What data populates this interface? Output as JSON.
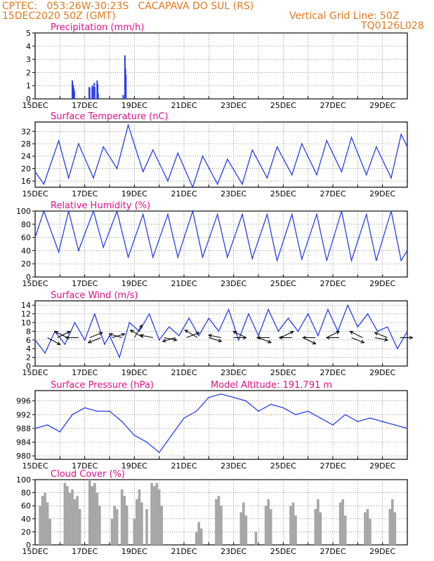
{
  "header": {
    "line1": "CPTEC:   053:26W-30:23S   CACAPAVA DO SUL (RS)",
    "line2": "15DEC2020 50Z (GMT)",
    "vgrid": "Vertical Grid Line: 50Z",
    "code": "TQ0126L028"
  },
  "colors": {
    "title_text": "#e0108a",
    "header_text": "#e07a22",
    "line_series": "#2a3fe8",
    "bar_series": "#2a3fe8",
    "cloud_bars": "#a6a6a6",
    "wind_arrows": "#000000"
  },
  "x_axis": {
    "tick_labels": [
      "15DEC",
      "17DEC",
      "19DEC",
      "21DEC",
      "23DEC",
      "25DEC",
      "27DEC",
      "29DEC"
    ],
    "range_days": [
      0,
      15
    ]
  },
  "chart_data": [
    {
      "type": "bar",
      "title": "Precipitation  (mm/h)",
      "ylim": [
        0,
        5
      ],
      "yticks": [
        0,
        1,
        2,
        3,
        4,
        5
      ],
      "x": [
        1.5,
        1.52,
        1.54,
        1.56,
        1.58,
        2.18,
        2.2,
        2.3,
        2.32,
        2.38,
        2.4,
        2.5,
        2.52,
        2.54,
        3.55,
        3.62,
        3.64,
        3.66
      ],
      "values": [
        1.4,
        1.1,
        1.0,
        0.8,
        0.6,
        0.9,
        0.8,
        1.0,
        0.9,
        1.2,
        0.9,
        1.4,
        1.1,
        0.4,
        0.3,
        3.3,
        2.3,
        1.8
      ]
    },
    {
      "type": "line",
      "title": "Surface Temperature  (nC)",
      "ylim": [
        14,
        35
      ],
      "yticks": [
        16,
        20,
        24,
        28,
        32
      ],
      "x": [
        0,
        0.35,
        0.95,
        1.35,
        1.75,
        2.35,
        2.75,
        3.3,
        3.75,
        4.35,
        4.75,
        5.35,
        5.75,
        6.35,
        6.75,
        7.35,
        7.75,
        8.35,
        8.75,
        9.35,
        9.75,
        10.35,
        10.75,
        11.35,
        11.75,
        12.35,
        12.75,
        13.35,
        13.75,
        14.35,
        14.75,
        15.0
      ],
      "values": [
        19,
        15,
        29,
        17,
        28,
        17,
        27,
        20,
        34,
        19,
        26,
        16,
        25,
        14,
        24,
        15,
        23,
        15,
        26,
        17,
        27,
        18,
        28,
        18,
        29,
        19,
        30,
        18,
        27,
        17,
        31,
        27
      ]
    },
    {
      "type": "line",
      "title": "Relative Humidity  (%)",
      "ylim": [
        0,
        100
      ],
      "yticks": [
        0,
        20,
        40,
        60,
        80,
        100
      ],
      "x": [
        0,
        0.35,
        0.95,
        1.35,
        1.75,
        2.35,
        2.75,
        3.3,
        3.75,
        4.35,
        4.75,
        5.35,
        5.75,
        6.35,
        6.75,
        7.35,
        7.75,
        8.35,
        8.75,
        9.35,
        9.75,
        10.35,
        10.75,
        11.35,
        11.75,
        12.35,
        12.75,
        13.35,
        13.75,
        14.35,
        14.75,
        15.0
      ],
      "values": [
        60,
        100,
        38,
        100,
        40,
        100,
        45,
        100,
        30,
        95,
        30,
        95,
        30,
        100,
        30,
        95,
        30,
        95,
        28,
        95,
        25,
        95,
        27,
        95,
        25,
        100,
        25,
        95,
        25,
        100,
        25,
        40
      ]
    },
    {
      "type": "line",
      "title": "Surface Wind  (m/s)",
      "ylim": [
        0,
        15
      ],
      "yticks": [
        0,
        2,
        4,
        6,
        8,
        10,
        12,
        14
      ],
      "x": [
        0,
        0.4,
        0.8,
        1.2,
        1.6,
        2.0,
        2.4,
        2.8,
        3.0,
        3.4,
        3.8,
        4.2,
        4.6,
        5.0,
        5.4,
        5.8,
        6.2,
        6.6,
        7.0,
        7.4,
        7.8,
        8.2,
        8.6,
        9.0,
        9.4,
        9.8,
        10.2,
        10.6,
        11.0,
        11.4,
        11.8,
        12.2,
        12.6,
        13.0,
        13.4,
        13.8,
        14.2,
        14.6,
        15.0
      ],
      "values": [
        6,
        3,
        8,
        5,
        10,
        6,
        12,
        5,
        7,
        2,
        10,
        8,
        12,
        6,
        9,
        7,
        11,
        7,
        11,
        8,
        13,
        6,
        12,
        7,
        13,
        8,
        11,
        8,
        12,
        7,
        13,
        8,
        14,
        9,
        12,
        8,
        9,
        4,
        8
      ],
      "wind_vectors": [
        {
          "x": 0.5,
          "u": 1.0,
          "v": -0.55
        },
        {
          "x": 0.9,
          "u": 1.0,
          "v": 0.5
        },
        {
          "x": 1.3,
          "u": -1.0,
          "v": 0.5
        },
        {
          "x": 1.75,
          "u": -1.0,
          "v": 0.0
        },
        {
          "x": 2.2,
          "u": 1.0,
          "v": 0.4
        },
        {
          "x": 2.65,
          "u": -1.0,
          "v": -0.4
        },
        {
          "x": 3.1,
          "u": 1.0,
          "v": 0.3
        },
        {
          "x": 3.5,
          "u": -1.0,
          "v": 0.3
        },
        {
          "x": 4.0,
          "u": 0.6,
          "v": 1.0
        },
        {
          "x": 4.35,
          "u": -1.0,
          "v": 0.6
        },
        {
          "x": 4.75,
          "u": -1.0,
          "v": 0.2
        },
        {
          "x": 5.2,
          "u": 1.0,
          "v": -0.2
        },
        {
          "x": 5.65,
          "u": -1.0,
          "v": -0.3
        },
        {
          "x": 6.1,
          "u": 1.0,
          "v": 0.4
        },
        {
          "x": 6.55,
          "u": -1.0,
          "v": 0.6
        },
        {
          "x": 7.0,
          "u": 1.0,
          "v": -0.3
        },
        {
          "x": 7.5,
          "u": -1.0,
          "v": 0.2
        },
        {
          "x": 8.0,
          "u": 1.0,
          "v": 0.0
        },
        {
          "x": 8.5,
          "u": -1.0,
          "v": 0.5
        },
        {
          "x": 9.0,
          "u": 1.0,
          "v": -0.4
        },
        {
          "x": 9.45,
          "u": -1.0,
          "v": 0.0
        },
        {
          "x": 9.9,
          "u": 1.0,
          "v": 0.5
        },
        {
          "x": 10.35,
          "u": -1.0,
          "v": 0.0
        },
        {
          "x": 10.8,
          "u": 1.0,
          "v": -0.5
        },
        {
          "x": 11.3,
          "u": -1.0,
          "v": 0.0
        },
        {
          "x": 11.75,
          "u": 1.0,
          "v": 0.5
        },
        {
          "x": 12.25,
          "u": -1.0,
          "v": 0.0
        },
        {
          "x": 12.75,
          "u": 1.0,
          "v": -0.4
        },
        {
          "x": 13.2,
          "u": -1.0,
          "v": 0.5
        },
        {
          "x": 13.7,
          "u": 1.0,
          "v": -0.2
        },
        {
          "x": 14.2,
          "u": -1.0,
          "v": 0.4
        },
        {
          "x": 14.7,
          "u": 1.0,
          "v": 0.0
        }
      ]
    },
    {
      "type": "line",
      "title": "Surface Pressure  (hPa)",
      "annotation": "Model Altitude: 191.791  m",
      "ylim": [
        979,
        999
      ],
      "yticks": [
        980,
        984,
        988,
        992,
        996
      ],
      "x": [
        0,
        0.5,
        1.0,
        1.5,
        2.0,
        2.5,
        3.0,
        3.5,
        4.0,
        4.5,
        5.0,
        5.5,
        6.0,
        6.5,
        7.0,
        7.5,
        8.0,
        8.5,
        9.0,
        9.5,
        10.0,
        10.5,
        11.0,
        11.5,
        12.0,
        12.5,
        13.0,
        13.5,
        14.0,
        14.5,
        15.0
      ],
      "values": [
        988,
        989,
        987,
        992,
        994,
        993,
        993,
        990,
        986,
        984,
        981,
        986,
        991,
        993,
        997,
        998,
        997,
        996,
        993,
        995,
        994,
        992,
        993,
        991,
        989,
        992,
        990,
        991,
        990,
        989,
        988
      ]
    },
    {
      "type": "bar",
      "title": "Cloud Cover  (%)",
      "ylim": [
        0,
        100
      ],
      "yticks": [
        0,
        20,
        40,
        60,
        80,
        100
      ],
      "x": [
        0.2,
        0.3,
        0.4,
        0.5,
        0.6,
        1.2,
        1.3,
        1.4,
        1.5,
        1.6,
        1.7,
        1.8,
        2.2,
        2.3,
        2.4,
        2.5,
        2.6,
        3.1,
        3.2,
        3.3,
        3.5,
        3.6,
        3.7,
        4.0,
        4.1,
        4.2,
        4.3,
        4.5,
        4.7,
        4.8,
        4.9,
        5.0,
        5.1,
        6.5,
        6.6,
        6.7,
        7.3,
        7.4,
        7.5,
        8.3,
        8.4,
        8.5,
        8.9,
        9.3,
        9.4,
        9.5,
        10.3,
        10.4,
        10.5,
        11.3,
        11.4,
        11.5,
        12.3,
        12.4,
        12.5,
        13.3,
        13.4,
        13.5,
        14.3,
        14.4,
        14.5
      ],
      "values": [
        60,
        75,
        80,
        65,
        40,
        95,
        90,
        80,
        85,
        70,
        75,
        55,
        100,
        90,
        95,
        80,
        60,
        40,
        60,
        55,
        85,
        75,
        60,
        40,
        70,
        85,
        65,
        55,
        95,
        90,
        95,
        85,
        60,
        20,
        35,
        25,
        70,
        75,
        60,
        50,
        65,
        45,
        20,
        60,
        70,
        55,
        60,
        65,
        45,
        55,
        70,
        50,
        65,
        70,
        45,
        50,
        55,
        40,
        55,
        70,
        50
      ]
    }
  ]
}
